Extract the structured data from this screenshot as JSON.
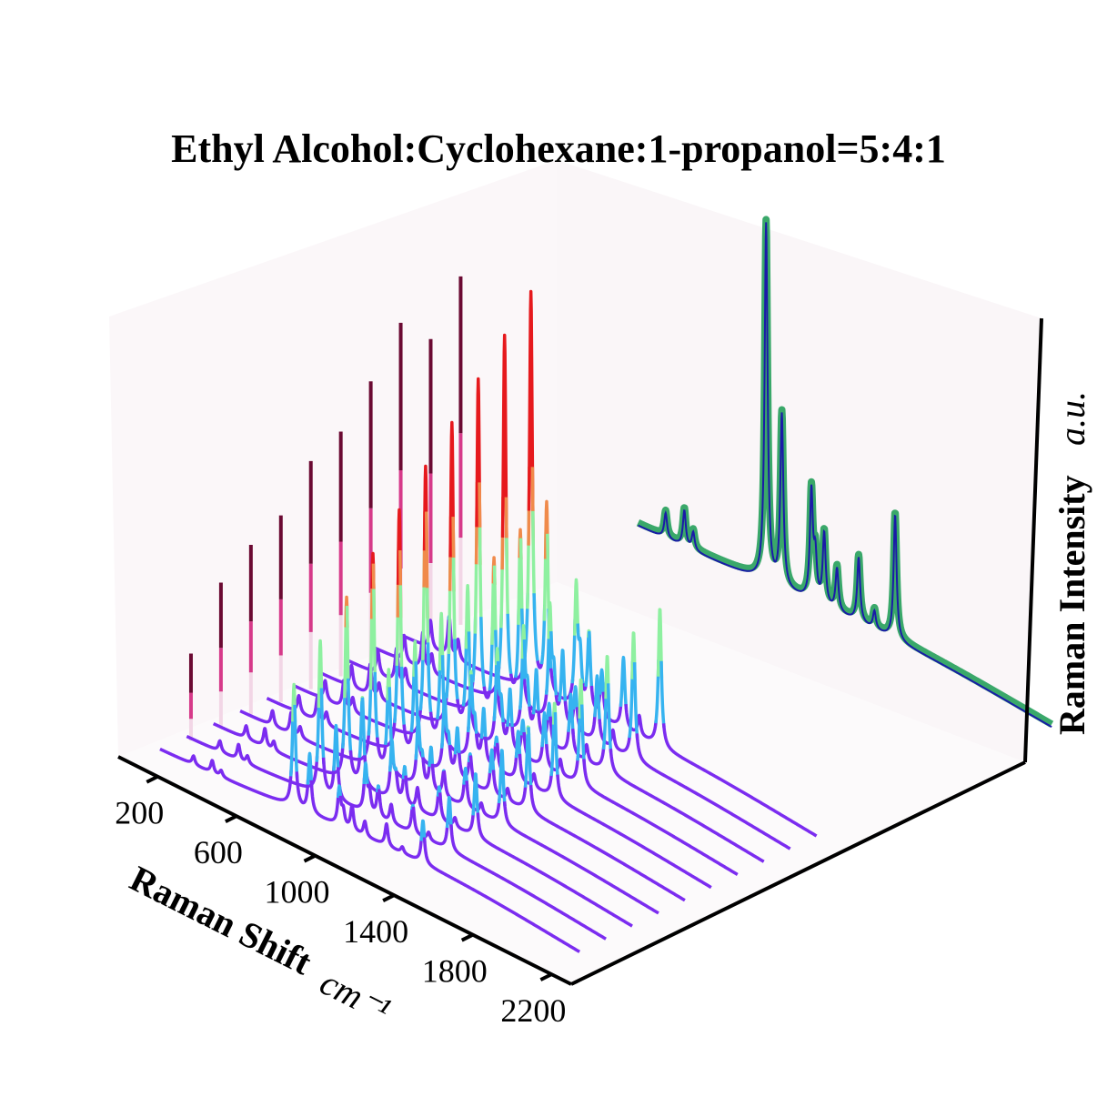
{
  "chart_data": {
    "type": "line",
    "title": "Ethyl Alcohol:Cyclohexane:1-propanol=5:4:1",
    "xlabel": "Raman Shift",
    "xlabel_unit": "cm⁻¹",
    "zlabel": "Raman Intensity",
    "zlabel_unit": "a.u.",
    "x_ticks": [
      200,
      600,
      1000,
      1400,
      1800,
      2200
    ],
    "xlim": [
      0,
      2300
    ],
    "grid": false,
    "num_spectra": 10,
    "peaks_cm1": [
      {
        "x": 290,
        "h": 0.07
      },
      {
        "x": 385,
        "h": 0.1
      },
      {
        "x": 430,
        "h": 0.05
      },
      {
        "x": 800,
        "h": 1.0
      },
      {
        "x": 880,
        "h": 0.48
      },
      {
        "x": 1030,
        "h": 0.3
      },
      {
        "x": 1050,
        "h": 0.12
      },
      {
        "x": 1095,
        "h": 0.2
      },
      {
        "x": 1160,
        "h": 0.12
      },
      {
        "x": 1270,
        "h": 0.18
      },
      {
        "x": 1350,
        "h": 0.05
      },
      {
        "x": 1455,
        "h": 0.35
      }
    ],
    "projection_peak_heights": [
      0.21,
      0.35,
      0.41,
      0.45,
      0.55,
      0.59,
      0.68,
      0.79,
      0.72,
      0.84
    ],
    "colors": {
      "spectrum_base": "#7b2cf0",
      "spectrum_mid": "#36b3f0",
      "spectrum_upper": "#8ef0a0",
      "spectrum_high": "#f08a4b",
      "spectrum_top": "#e6191d",
      "projection_dark": "#6b0a33",
      "projection_mid": "#d63a8a",
      "projection_light": "#f2d6e6",
      "average_band": "#3aa86a",
      "average_line": "#1a1aa8",
      "pane": "#fbf7f9"
    }
  }
}
